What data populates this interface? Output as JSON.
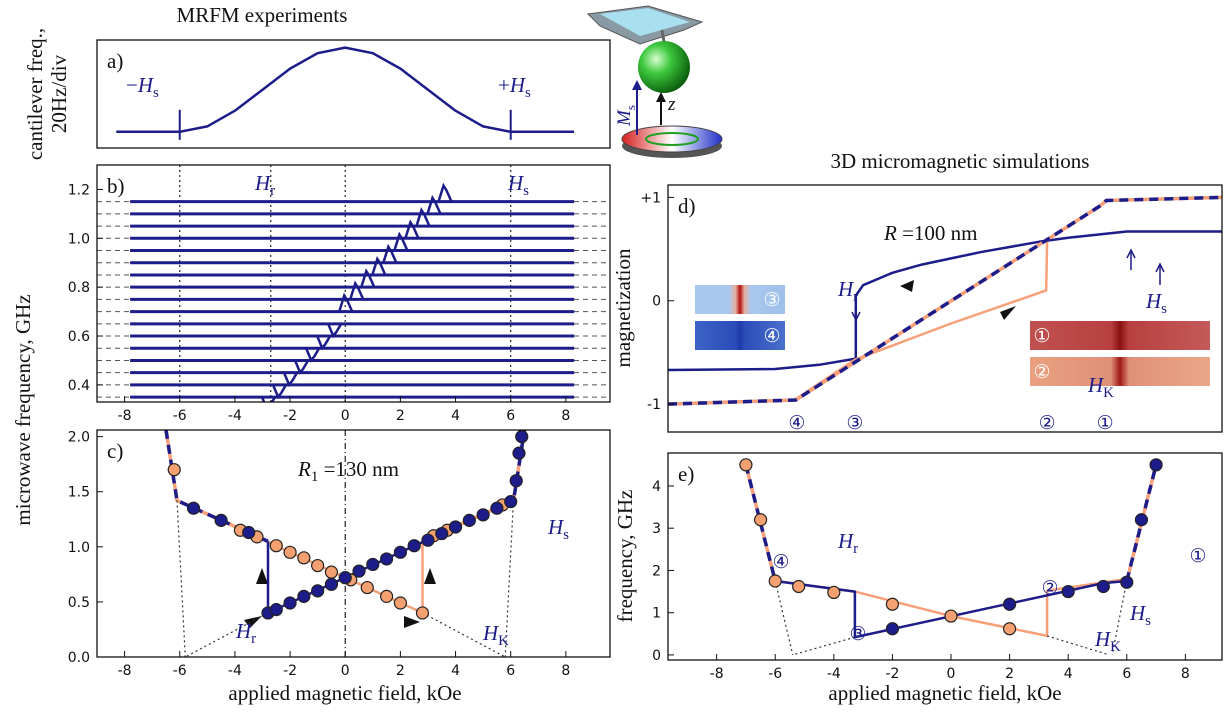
{
  "chart_data": [
    {
      "type": "line",
      "title": "MRFM experiments",
      "panel_label": "a)",
      "ylabel": [
        "cantilever freq.,",
        "20Hz/div"
      ],
      "xlim": [
        -9,
        9.6
      ],
      "ylim": [
        0,
        1
      ],
      "series": [
        {
          "color": "#1c1c8a",
          "style": "line",
          "x": [
            -8.3,
            -6,
            -5,
            -4,
            -3,
            -2,
            -1,
            0,
            1,
            2,
            3,
            4,
            5,
            6,
            8.3
          ],
          "values": [
            0.15,
            0.15,
            0.2,
            0.345,
            0.54,
            0.735,
            0.878,
            0.93,
            0.878,
            0.735,
            0.54,
            0.345,
            0.2,
            0.15,
            0.15
          ]
        }
      ],
      "markers": [
        -6,
        6
      ],
      "annotations": [
        {
          "pre": "−",
          "italic": "H",
          "sub": "s"
        },
        {
          "pre": "+",
          "italic": "H",
          "sub": "s"
        }
      ]
    },
    {
      "type": "spectra",
      "panel_label": "b)",
      "ylabel": "microwave frequency, GHz",
      "xlim": [
        -9,
        9.6
      ],
      "ylim": [
        0.33,
        1.3
      ],
      "xticks": [
        -8,
        -6,
        -4,
        -2,
        0,
        2,
        4,
        6,
        8
      ],
      "yticks": [
        0.4,
        0.6,
        0.8,
        {
          "value": 1,
          "label": "1.0"
        },
        1.2
      ],
      "grid": true,
      "color": "#1c1c8a",
      "trace_span": [
        -7.8,
        8.3
      ],
      "levels": [
        0.35,
        0.4,
        0.45,
        0.5,
        0.55,
        0.6,
        0.65,
        0.7,
        0.75,
        0.8,
        0.85,
        0.9,
        0.95,
        1.0,
        1.05,
        1.1,
        1.15
      ],
      "peaks": [
        -2.8,
        -2.4,
        -2,
        -1.6,
        -1.2,
        -0.8,
        -0.4,
        0,
        0.4,
        0.8,
        1.2,
        1.6,
        2,
        2.4,
        2.8,
        3.2,
        3.6
      ],
      "vlines": [
        -6,
        -2.7,
        0,
        6
      ],
      "annotations": [
        {
          "italic": "H",
          "sub": "r"
        },
        {
          "italic": "H",
          "sub": "s"
        }
      ]
    },
    {
      "type": "scatter",
      "panel_label": "c)",
      "xlabel": "applied magnetic field, kOe",
      "xlim": [
        -9,
        9.6
      ],
      "ylim": [
        0,
        2.06
      ],
      "xticks": [
        -8,
        -6,
        -4,
        -2,
        0,
        2,
        4,
        6,
        8
      ],
      "yticks": [
        {
          "value": 0,
          "label": "0.0"
        },
        0.5,
        {
          "value": 1,
          "label": "1.0"
        },
        1.5,
        {
          "value": 2,
          "label": "2.0"
        }
      ],
      "vlines": [
        0
      ],
      "series": [
        {
          "color": "#f7a07a",
          "style": "line",
          "x": [
            -6.1,
            2.8,
            2.8
          ],
          "values": [
            1.42,
            0.4,
            1.05
          ]
        },
        {
          "color": "#1c1c8a",
          "style": "line",
          "x": [
            -2.8,
            -2.8,
            6.1
          ],
          "values": [
            1.05,
            0.4,
            1.42
          ]
        },
        {
          "color": "#f7a07a",
          "dash_color": "#1c1c8a",
          "style": "dashed",
          "x": [
            -6.5,
            -6.1,
            -2.8,
            null,
            2.8,
            6.1,
            6.5
          ],
          "values": [
            2.06,
            1.42,
            1.05,
            null,
            1.05,
            1.42,
            2.06
          ]
        },
        {
          "color": "#333333",
          "style": "dotted",
          "x": [
            -6.1,
            -5.8,
            null,
            -2.8,
            -5.8,
            null,
            6.1,
            5.8,
            null,
            2.8,
            5.8
          ],
          "values": [
            1.42,
            0,
            null,
            0.4,
            0,
            null,
            1.42,
            0,
            null,
            0.4,
            0
          ]
        },
        {
          "color": "#f4a070",
          "style": "markers",
          "x": [
            -6.2,
            -3.8,
            -3.2,
            -2.5,
            -2,
            -1.5,
            -1,
            -0.5,
            0.2,
            0.8,
            1.5,
            2,
            2.8,
            3.2,
            3.7,
            5.7
          ],
          "values": [
            1.7,
            1.15,
            1.09,
            1.01,
            0.95,
            0.9,
            0.83,
            0.77,
            0.7,
            0.63,
            0.55,
            0.49,
            0.4,
            1.1,
            1.15,
            1.38
          ]
        },
        {
          "color": "#1c1c8a",
          "style": "markers",
          "x": [
            -5.5,
            -4.5,
            -3.5,
            -2.8,
            -2.5,
            -2,
            -1.5,
            -1,
            -0.5,
            0,
            0.5,
            1,
            1.5,
            2,
            2.5,
            3,
            3.5,
            4,
            4.5,
            5,
            5.5,
            6,
            6.2,
            6.3,
            6.4
          ],
          "values": [
            1.35,
            1.24,
            1.13,
            0.4,
            0.43,
            0.49,
            0.55,
            0.6,
            0.66,
            0.72,
            0.78,
            0.84,
            0.89,
            0.95,
            1.01,
            1.06,
            1.12,
            1.18,
            1.24,
            1.29,
            1.35,
            1.41,
            1.6,
            1.85,
            2.0
          ]
        }
      ],
      "annotations": [
        {
          "italic": "R",
          "sub": "1",
          "post": " =130 nm"
        },
        {
          "italic": "H",
          "sub": "r"
        },
        {
          "italic": "H",
          "sub": "K"
        },
        {
          "italic": "H",
          "sub": "s"
        }
      ]
    },
    {
      "type": "line",
      "title": "3D micromagnetic simulations",
      "panel_label": "d)",
      "ylabel": "magnetization",
      "xlim": [
        -9.66,
        9.25
      ],
      "ylim": [
        -1.27,
        1.12
      ],
      "yticks": [
        -1,
        0,
        {
          "value": 1,
          "label": "+1"
        }
      ],
      "series": [
        {
          "color": "#1c1c8a",
          "style": "line",
          "x": [
            -9.66,
            -6,
            -4.5,
            -3.25,
            -3.25,
            -3,
            -2,
            -1,
            0,
            1,
            2,
            3,
            4,
            5,
            6,
            9.25
          ],
          "values": [
            -0.67,
            -0.66,
            -0.62,
            -0.56,
            0.05,
            0.15,
            0.27,
            0.35,
            0.41,
            0.47,
            0.52,
            0.57,
            0.61,
            0.64,
            0.67,
            0.67
          ]
        },
        {
          "color": "#f7a07a",
          "style": "line",
          "x": [
            -5.4,
            -3.28,
            0,
            3.25,
            3.28
          ],
          "values": [
            -0.97,
            -0.57,
            -0.22,
            0.1,
            0.57
          ]
        },
        {
          "color": "#f7a07a",
          "dash_color": "#1c1c8a",
          "style": "dashed",
          "x": [
            -9.66,
            -5.3,
            5.1,
            5.3,
            9.25
          ],
          "values": [
            -1,
            -0.96,
            0.92,
            0.97,
            1
          ]
        }
      ],
      "annotations": [
        {
          "italic": "R",
          "post": " =100 nm"
        },
        {
          "italic": "H",
          "sub": "r"
        },
        {
          "italic": "H",
          "sub": "K"
        },
        {
          "italic": "H",
          "sub": "s"
        }
      ],
      "states": [
        "①",
        "②",
        "③",
        "④"
      ],
      "state_fields": [
        5.26,
        3.28,
        -3.28,
        -5.26
      ]
    },
    {
      "type": "scatter",
      "panel_label": "e)",
      "ylabel": "frequency, GHz",
      "xlabel": "applied magnetic field, kOe",
      "xlim": [
        -9.66,
        9.25
      ],
      "ylim": [
        -0.12,
        4.78
      ],
      "xticks": [
        -8,
        -6,
        -4,
        -2,
        0,
        2,
        4,
        6,
        8
      ],
      "yticks": [
        0,
        1,
        2,
        3,
        4
      ],
      "series": [
        {
          "color": "#f7a07a",
          "style": "line",
          "x": [
            -6,
            -3.28,
            0,
            3.28,
            3.28,
            6
          ],
          "values": [
            1.75,
            1.5,
            0.92,
            0.45,
            1.52,
            1.8
          ]
        },
        {
          "color": "#1c1c8a",
          "style": "line",
          "x": [
            -6,
            -3.28,
            -3.28,
            5.2,
            6
          ],
          "values": [
            1.75,
            1.5,
            0.42,
            1.7,
            1.75
          ]
        },
        {
          "color": "#f7a07a",
          "dash_color": "#1c1c8a",
          "style": "dashed",
          "x": [
            -7,
            -6,
            null,
            6,
            7
          ],
          "values": [
            4.5,
            1.75,
            null,
            1.75,
            4.5
          ]
        },
        {
          "color": "#333333",
          "style": "dotted",
          "x": [
            -6,
            -5.4,
            null,
            -3.28,
            -5.4,
            null,
            6,
            5.5,
            null,
            3.28,
            5.4
          ],
          "values": [
            1.75,
            0,
            null,
            0.42,
            0,
            null,
            1.75,
            0,
            null,
            0.45,
            0
          ]
        },
        {
          "color": "#f4a070",
          "style": "markers",
          "x": [
            -7,
            -6.5,
            -6,
            -5.2,
            -4,
            -2,
            0,
            2
          ],
          "values": [
            4.5,
            3.2,
            1.75,
            1.62,
            1.48,
            1.2,
            0.92,
            0.62
          ]
        },
        {
          "color": "#1c1c8a",
          "style": "markers",
          "x": [
            -2,
            2,
            4,
            5.2,
            6,
            6.5,
            7
          ],
          "values": [
            0.62,
            1.2,
            1.5,
            1.62,
            1.72,
            3.2,
            4.5
          ]
        }
      ],
      "annotations": [
        {
          "italic": "H",
          "sub": "r"
        },
        {
          "italic": "H",
          "sub": "s"
        },
        {
          "italic": "H",
          "sub": "K"
        }
      ]
    }
  ],
  "icon": {
    "moment": {
      "italic": "M",
      "sub": "s"
    },
    "axis": {
      "italic": "z"
    }
  }
}
